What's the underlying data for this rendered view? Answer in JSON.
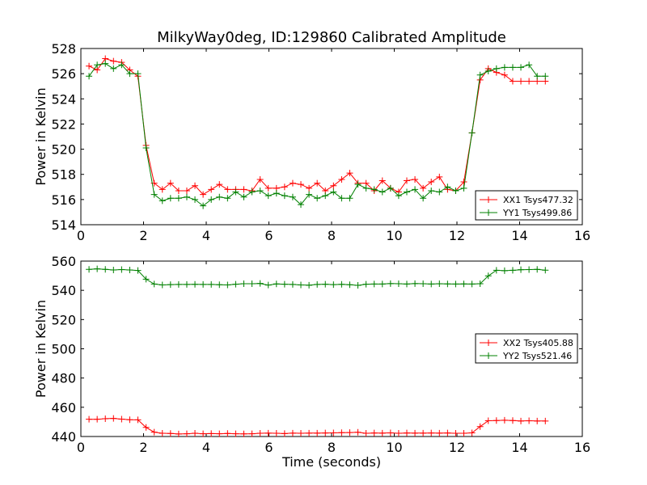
{
  "chart_data": [
    {
      "type": "line",
      "title": "MilkyWay0deg, ID:129860 Calibrated Amplitude",
      "xlabel": "",
      "ylabel": "Power in Kelvin",
      "xlim": [
        0,
        16
      ],
      "ylim": [
        514,
        528
      ],
      "xticks": [
        0,
        2,
        4,
        6,
        8,
        10,
        12,
        14,
        16
      ],
      "yticks": [
        514,
        516,
        518,
        520,
        522,
        524,
        526,
        528
      ],
      "grid": false,
      "legend_position": "lower-right",
      "series": [
        {
          "name": "XX1 Tsys477.32",
          "color": "#ff0000",
          "x": [
            0.26,
            0.52,
            0.78,
            1.04,
            1.3,
            1.56,
            1.82,
            2.08,
            2.34,
            2.6,
            2.86,
            3.12,
            3.38,
            3.64,
            3.9,
            4.16,
            4.42,
            4.68,
            4.94,
            5.2,
            5.46,
            5.72,
            5.98,
            6.24,
            6.5,
            6.76,
            7.02,
            7.28,
            7.54,
            7.8,
            8.06,
            8.32,
            8.58,
            8.84,
            9.1,
            9.36,
            9.62,
            9.88,
            10.14,
            10.4,
            10.66,
            10.92,
            11.18,
            11.44,
            11.7,
            11.96,
            12.22,
            12.48,
            12.74,
            13.0,
            13.26,
            13.52,
            13.78,
            14.04,
            14.3,
            14.56,
            14.82
          ],
          "y": [
            526.6,
            526.3,
            527.2,
            527.0,
            526.9,
            526.3,
            525.8,
            520.3,
            517.3,
            516.8,
            517.3,
            516.7,
            516.7,
            517.1,
            516.4,
            516.8,
            517.2,
            516.8,
            516.8,
            516.8,
            516.7,
            517.6,
            516.9,
            516.9,
            517.0,
            517.3,
            517.2,
            516.9,
            517.3,
            516.7,
            517.1,
            517.6,
            518.1,
            517.3,
            517.3,
            516.7,
            517.5,
            516.9,
            516.6,
            517.5,
            517.6,
            516.9,
            517.4,
            517.8,
            516.8,
            516.7,
            517.4,
            521.3,
            525.5,
            526.4,
            526.1,
            525.9,
            525.4,
            525.4,
            525.4,
            525.4,
            525.4
          ]
        },
        {
          "name": "YY1 Tsys499.86",
          "color": "#008000",
          "x": [
            0.26,
            0.52,
            0.78,
            1.04,
            1.3,
            1.56,
            1.82,
            2.08,
            2.34,
            2.6,
            2.86,
            3.12,
            3.38,
            3.64,
            3.9,
            4.16,
            4.42,
            4.68,
            4.94,
            5.2,
            5.46,
            5.72,
            5.98,
            6.24,
            6.5,
            6.76,
            7.02,
            7.28,
            7.54,
            7.8,
            8.06,
            8.32,
            8.58,
            8.84,
            9.1,
            9.36,
            9.62,
            9.88,
            10.14,
            10.4,
            10.66,
            10.92,
            11.18,
            11.44,
            11.7,
            11.96,
            12.22,
            12.48,
            12.74,
            13.0,
            13.26,
            13.52,
            13.78,
            14.04,
            14.3,
            14.56,
            14.82
          ],
          "y": [
            525.8,
            526.7,
            526.8,
            526.4,
            526.7,
            526.0,
            526.0,
            520.1,
            516.4,
            515.9,
            516.1,
            516.1,
            516.2,
            516.0,
            515.5,
            516.0,
            516.2,
            516.1,
            516.6,
            516.2,
            516.6,
            516.7,
            516.3,
            516.5,
            516.3,
            516.2,
            515.6,
            516.4,
            516.1,
            516.3,
            516.6,
            516.1,
            516.1,
            517.2,
            516.9,
            516.8,
            516.6,
            516.9,
            516.3,
            516.6,
            516.8,
            516.1,
            516.7,
            516.6,
            517.0,
            516.7,
            516.9,
            521.3,
            525.9,
            526.2,
            526.4,
            526.5,
            526.5,
            526.5,
            526.7,
            525.8,
            525.8
          ]
        }
      ]
    },
    {
      "type": "line",
      "title": "",
      "xlabel": "Time (seconds)",
      "ylabel": "Power in Kelvin",
      "xlim": [
        0,
        16
      ],
      "ylim": [
        440,
        560
      ],
      "xticks": [
        0,
        2,
        4,
        6,
        8,
        10,
        12,
        14,
        16
      ],
      "yticks": [
        440,
        460,
        480,
        500,
        520,
        540,
        560
      ],
      "grid": false,
      "legend_position": "center-right",
      "series": [
        {
          "name": "XX2 Tsys405.88",
          "color": "#ff0000",
          "x": [
            0.26,
            0.52,
            0.78,
            1.04,
            1.3,
            1.56,
            1.82,
            2.08,
            2.34,
            2.6,
            2.86,
            3.12,
            3.38,
            3.64,
            3.9,
            4.16,
            4.42,
            4.68,
            4.94,
            5.2,
            5.46,
            5.72,
            5.98,
            6.24,
            6.5,
            6.76,
            7.02,
            7.28,
            7.54,
            7.8,
            8.06,
            8.32,
            8.58,
            8.84,
            9.1,
            9.36,
            9.62,
            9.88,
            10.14,
            10.4,
            10.66,
            10.92,
            11.18,
            11.44,
            11.7,
            11.96,
            12.22,
            12.48,
            12.74,
            13.0,
            13.26,
            13.52,
            13.78,
            14.04,
            14.3,
            14.56,
            14.82
          ],
          "y": [
            451.8,
            451.8,
            452.2,
            452.4,
            451.9,
            451.5,
            451.4,
            446.2,
            443.0,
            442.2,
            442.1,
            441.7,
            441.9,
            442.2,
            441.9,
            442.0,
            441.9,
            442.1,
            441.9,
            441.8,
            441.9,
            442.2,
            442.3,
            442.2,
            442.0,
            442.3,
            442.2,
            442.3,
            442.3,
            442.4,
            442.5,
            442.6,
            442.7,
            442.9,
            442.2,
            442.4,
            442.3,
            442.5,
            442.2,
            442.4,
            442.3,
            442.3,
            442.4,
            442.3,
            442.4,
            442.2,
            442.2,
            442.5,
            446.8,
            450.8,
            450.9,
            451.1,
            450.9,
            450.6,
            450.8,
            450.6,
            450.6
          ]
        },
        {
          "name": "YY2 Tsys521.46",
          "color": "#008000",
          "x": [
            0.26,
            0.52,
            0.78,
            1.04,
            1.3,
            1.56,
            1.82,
            2.08,
            2.34,
            2.6,
            2.86,
            3.12,
            3.38,
            3.64,
            3.9,
            4.16,
            4.42,
            4.68,
            4.94,
            5.2,
            5.46,
            5.72,
            5.98,
            6.24,
            6.5,
            6.76,
            7.02,
            7.28,
            7.54,
            7.8,
            8.06,
            8.32,
            8.58,
            8.84,
            9.1,
            9.36,
            9.62,
            9.88,
            10.14,
            10.4,
            10.66,
            10.92,
            11.18,
            11.44,
            11.7,
            11.96,
            12.22,
            12.48,
            12.74,
            13.0,
            13.26,
            13.52,
            13.78,
            14.04,
            14.3,
            14.56,
            14.82
          ],
          "y": [
            554.3,
            554.7,
            554.3,
            553.9,
            554.2,
            553.9,
            553.6,
            547.6,
            544.3,
            543.7,
            543.9,
            544.0,
            544.0,
            544.1,
            544.0,
            544.0,
            543.8,
            543.7,
            544.2,
            544.5,
            544.5,
            544.7,
            543.6,
            544.4,
            544.2,
            544.0,
            543.7,
            543.5,
            544.0,
            544.2,
            543.9,
            544.1,
            543.8,
            543.4,
            544.2,
            544.3,
            544.3,
            544.6,
            544.5,
            544.3,
            544.6,
            544.5,
            544.3,
            544.5,
            544.4,
            544.3,
            544.4,
            544.3,
            544.5,
            549.9,
            553.7,
            553.4,
            553.7,
            554.1,
            554.2,
            554.3,
            553.8
          ]
        }
      ]
    }
  ]
}
